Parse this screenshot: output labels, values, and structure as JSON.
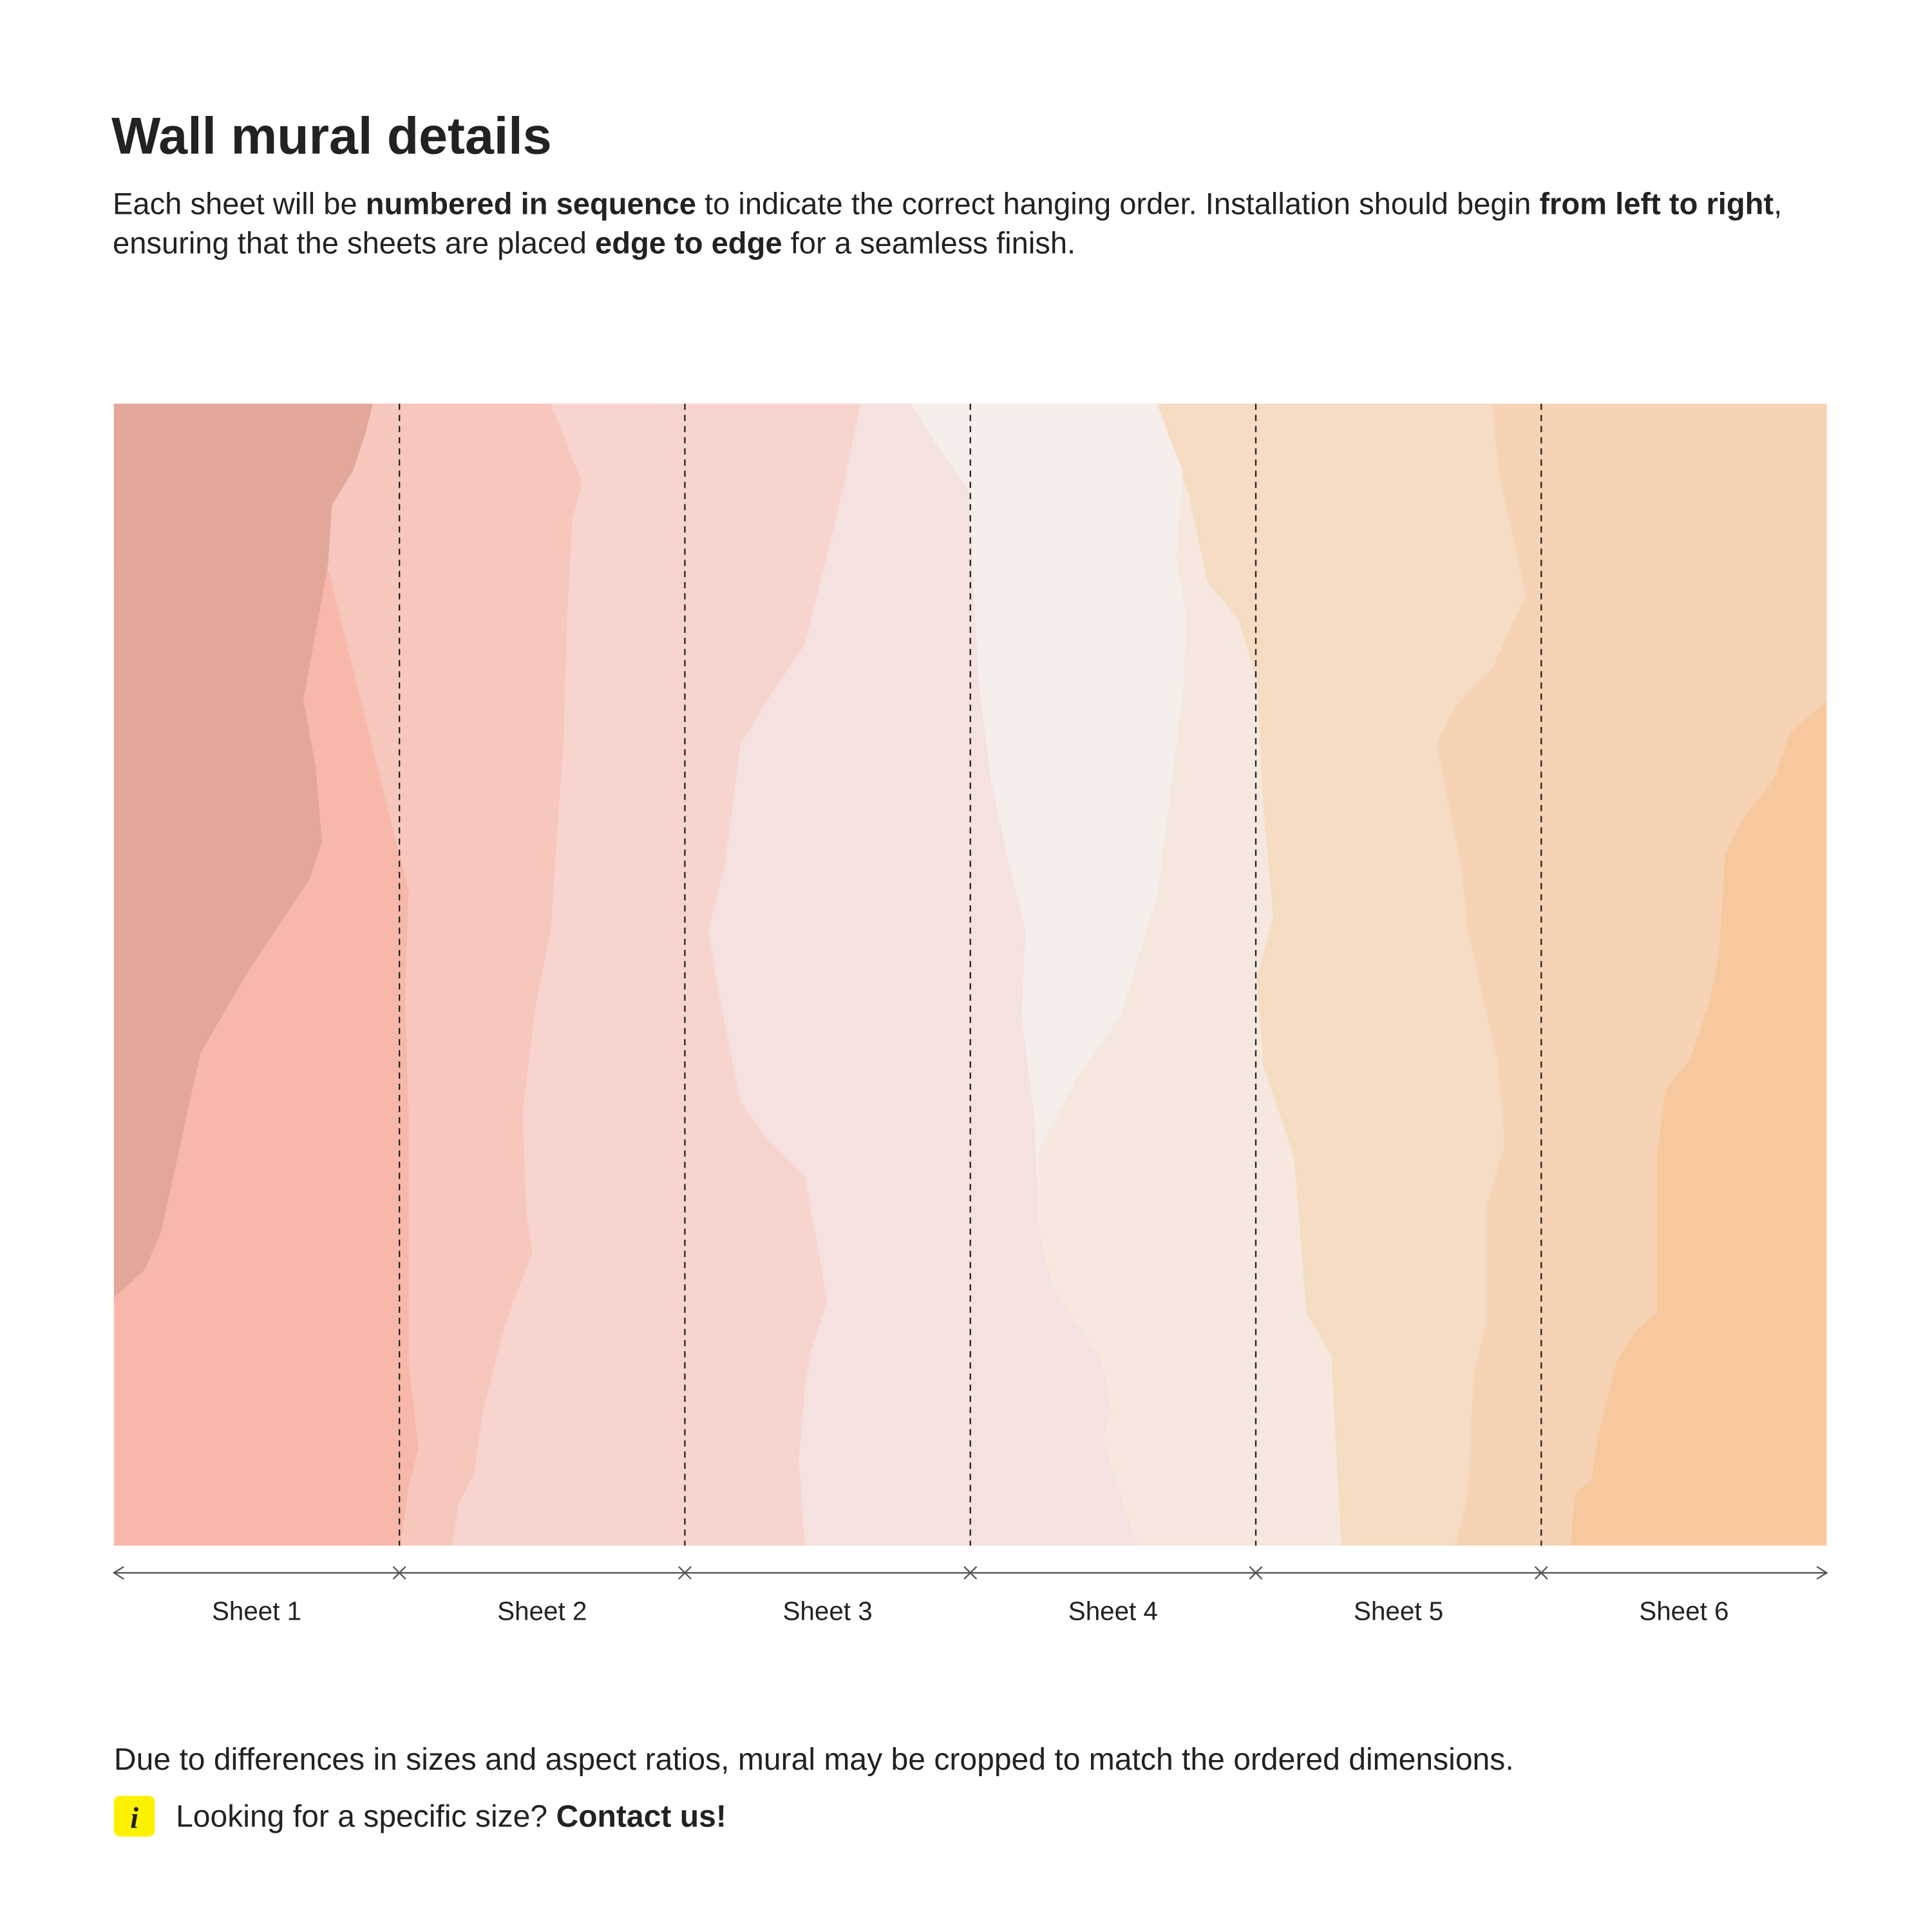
{
  "header": {
    "title": "Wall mural details",
    "description": [
      [
        {
          "text": "Each sheet will be ",
          "strong": false
        },
        {
          "text": "numbered in sequence",
          "strong": true
        },
        {
          "text": " to indicate the correct hanging order. Installation should begin ",
          "strong": false
        },
        {
          "text": "from left to right",
          "strong": true
        },
        {
          "text": ",",
          "strong": false
        }
      ],
      [
        {
          "text": "ensuring that the sheets are placed ",
          "strong": false
        },
        {
          "text": "edge to edge",
          "strong": true
        },
        {
          "text": " for a seamless finish.",
          "strong": false
        }
      ]
    ]
  },
  "mural": {
    "sheets": [
      "Sheet 1",
      "Sheet 2",
      "Sheet 3",
      "Sheet 4",
      "Sheet 5",
      "Sheet 6"
    ]
  },
  "footer": {
    "note": "Due to differences in sizes and aspect ratios, mural may be cropped to match the ordered dimensions.",
    "contact": [
      {
        "text": "Looking for a specific size? ",
        "strong": false
      },
      {
        "text": "Contact us!",
        "strong": true
      }
    ]
  }
}
